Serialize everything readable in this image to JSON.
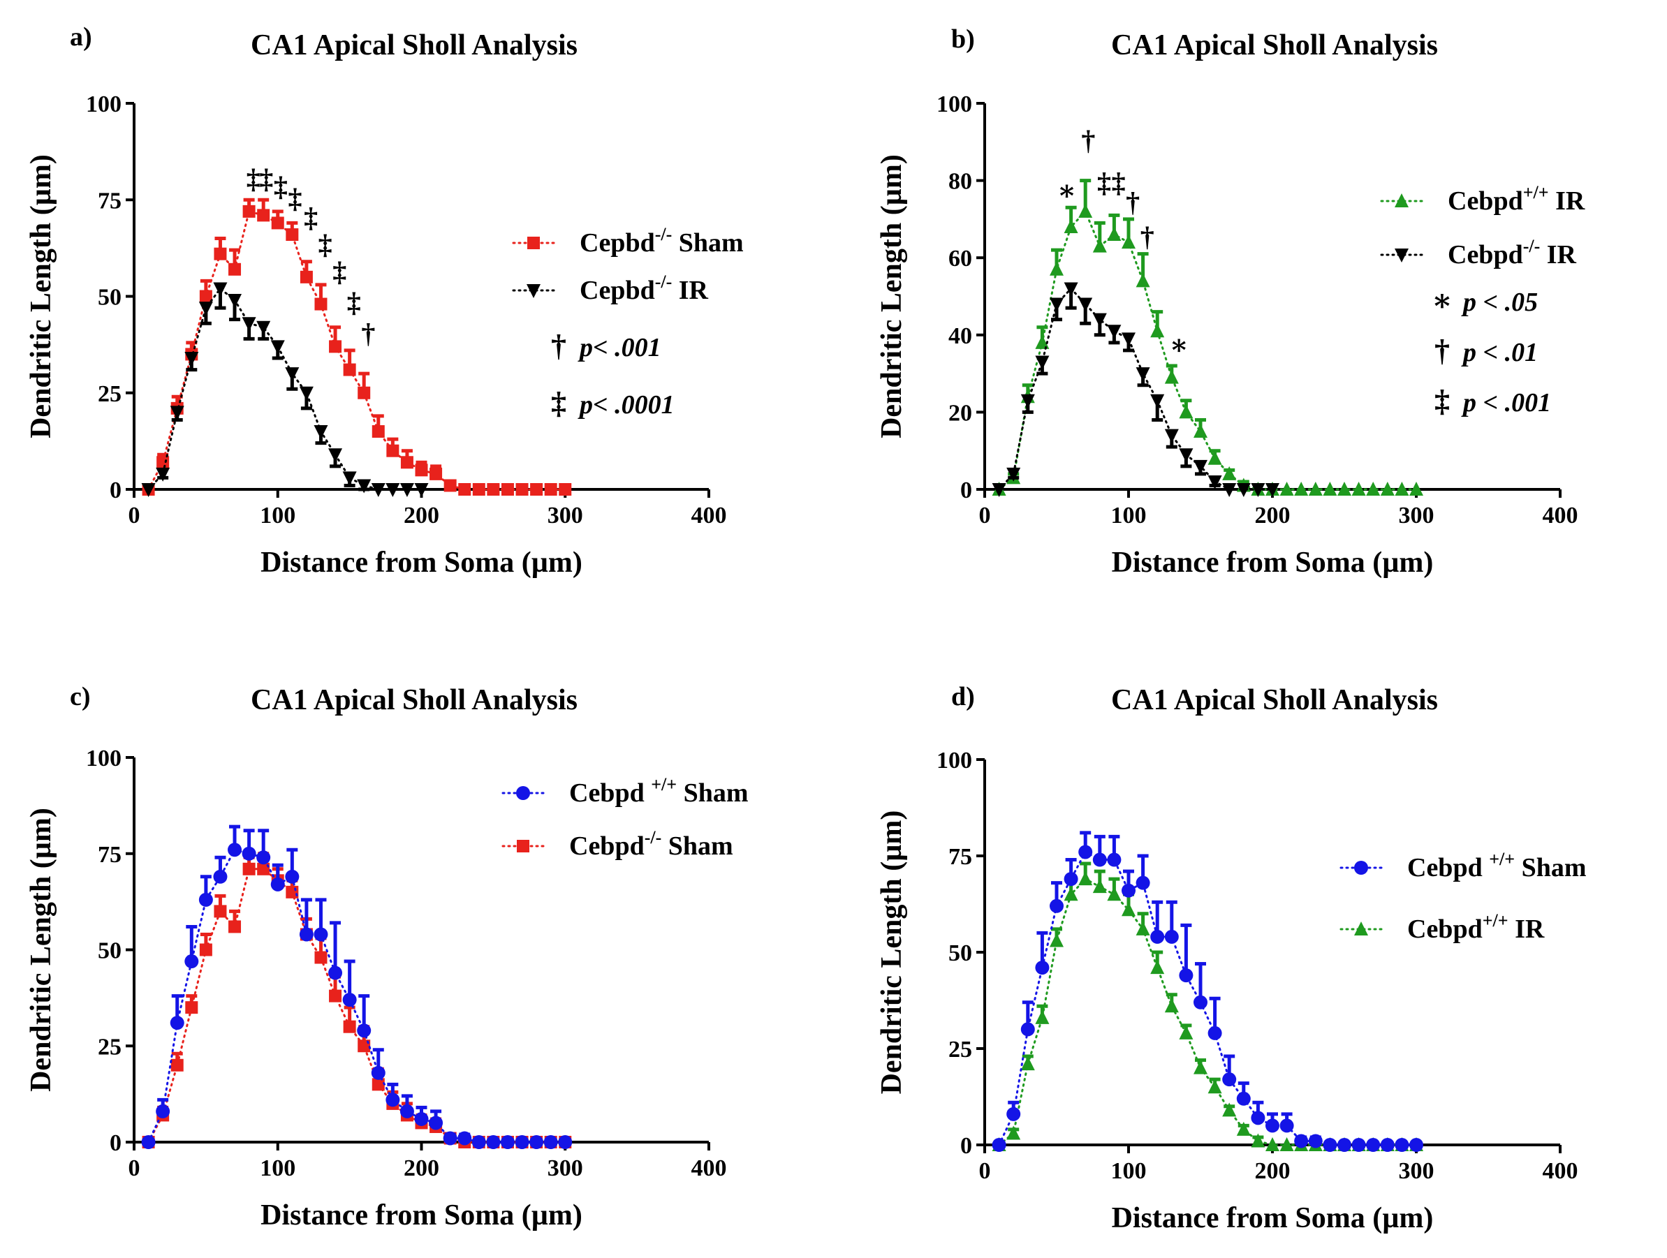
{
  "figure": {
    "colors": {
      "red": "#e8221c",
      "black": "#000000",
      "green": "#1f9a1f",
      "blue": "#1414e6"
    }
  },
  "chart_data": [
    {
      "panel": "a)",
      "type": "line",
      "title": "CA1 Apical Sholl Analysis",
      "xlabel": "Distance from Soma (µm)",
      "ylabel": "Dendritic Length (µm)",
      "xlim": [
        0,
        400
      ],
      "ylim": [
        0,
        100
      ],
      "xticks": [
        0,
        100,
        200,
        300,
        400
      ],
      "yticks": [
        0,
        25,
        50,
        75,
        100
      ],
      "legend": [
        {
          "marker": "square",
          "color": "#e8221c",
          "label": "Cepbd",
          "sup": "-/-",
          "suffix": " Sham"
        },
        {
          "marker": "tri-down",
          "color": "#000000",
          "label": "Cepbd",
          "sup": "-/-",
          "suffix": " IR"
        }
      ],
      "sig_legend": [
        {
          "symbol": "†",
          "text": "p< .001"
        },
        {
          "symbol": "‡",
          "text": "p< .0001"
        }
      ],
      "series": [
        {
          "name": "Cepbd-/- Sham",
          "color": "#e8221c",
          "marker": "square",
          "x": [
            10,
            20,
            30,
            40,
            50,
            60,
            70,
            80,
            90,
            100,
            110,
            120,
            130,
            140,
            150,
            160,
            170,
            180,
            190,
            200,
            210,
            220,
            230,
            240,
            250,
            260,
            270,
            280,
            290,
            300
          ],
          "y": [
            0,
            7,
            21,
            35,
            50,
            61,
            57,
            72,
            71,
            69,
            66,
            55,
            48,
            37,
            31,
            25,
            15,
            10,
            7,
            5,
            4,
            1,
            0,
            0,
            0,
            0,
            0,
            0,
            0,
            0
          ],
          "err": [
            0,
            2,
            3,
            3,
            4,
            4,
            5,
            3,
            4,
            3,
            3,
            4,
            5,
            5,
            5,
            5,
            4,
            3,
            3,
            2,
            2,
            1,
            0,
            0,
            0,
            0,
            0,
            0,
            0,
            0
          ]
        },
        {
          "name": "Cepbd-/- IR",
          "color": "#000000",
          "marker": "tri-down",
          "x": [
            10,
            20,
            30,
            40,
            50,
            60,
            70,
            80,
            90,
            100,
            110,
            120,
            130,
            140,
            150,
            160,
            170,
            180,
            190,
            200
          ],
          "y": [
            0,
            4,
            20,
            34,
            47,
            52,
            49,
            43,
            42,
            37,
            30,
            25,
            15,
            9,
            3,
            1,
            0,
            0,
            0,
            0
          ],
          "err": [
            0,
            1,
            2,
            3,
            4,
            5,
            5,
            4,
            3,
            3,
            4,
            4,
            3,
            3,
            2,
            1,
            0,
            0,
            0,
            0
          ]
        }
      ],
      "annotations": [
        {
          "x": 83,
          "y": 78,
          "text": "‡"
        },
        {
          "x": 92,
          "y": 78,
          "text": "‡"
        },
        {
          "x": 102,
          "y": 76,
          "text": "‡"
        },
        {
          "x": 112,
          "y": 73,
          "text": "‡"
        },
        {
          "x": 123,
          "y": 68,
          "text": "‡"
        },
        {
          "x": 133,
          "y": 61,
          "text": "‡"
        },
        {
          "x": 143,
          "y": 54,
          "text": "‡"
        },
        {
          "x": 153,
          "y": 46,
          "text": "‡"
        },
        {
          "x": 163,
          "y": 38,
          "text": "†"
        }
      ]
    },
    {
      "panel": "b)",
      "type": "line",
      "title": "CA1 Apical Sholl Analysis",
      "xlabel": "Distance from Soma (µm)",
      "ylabel": "Dendritic Length (µm)",
      "xlim": [
        0,
        400
      ],
      "ylim": [
        0,
        100
      ],
      "xticks": [
        0,
        100,
        200,
        300,
        400
      ],
      "yticks": [
        0,
        20,
        40,
        60,
        80,
        100
      ],
      "legend": [
        {
          "marker": "tri-up",
          "color": "#1f9a1f",
          "label": "Cebpd",
          "sup": "+/+",
          "suffix": " IR"
        },
        {
          "marker": "tri-down",
          "color": "#000000",
          "label": "Cebpd",
          "sup": "-/-",
          "suffix": " IR"
        }
      ],
      "sig_legend": [
        {
          "symbol": "∗",
          "text": "p < .05"
        },
        {
          "symbol": "†",
          "text": "p < .01"
        },
        {
          "symbol": "‡",
          "text": "p < .001"
        }
      ],
      "series": [
        {
          "name": "Cebpd+/+ IR",
          "color": "#1f9a1f",
          "marker": "tri-up",
          "x": [
            10,
            20,
            30,
            40,
            50,
            60,
            70,
            80,
            90,
            100,
            110,
            120,
            130,
            140,
            150,
            160,
            170,
            180,
            190,
            200,
            210,
            220,
            230,
            240,
            250,
            260,
            270,
            280,
            290,
            300
          ],
          "y": [
            0,
            3,
            24,
            38,
            57,
            68,
            72,
            63,
            66,
            64,
            54,
            41,
            29,
            20,
            15,
            8,
            4,
            1,
            0,
            0,
            0,
            0,
            0,
            0,
            0,
            0,
            0,
            0,
            0,
            0
          ],
          "err": [
            0,
            1,
            3,
            4,
            5,
            5,
            8,
            6,
            5,
            6,
            7,
            5,
            3,
            3,
            3,
            2,
            1,
            1,
            0,
            0,
            0,
            0,
            0,
            0,
            0,
            0,
            0,
            0,
            0,
            0
          ]
        },
        {
          "name": "Cebpd-/- IR",
          "color": "#000000",
          "marker": "tri-down",
          "x": [
            10,
            20,
            30,
            40,
            50,
            60,
            70,
            80,
            90,
            100,
            110,
            120,
            130,
            140,
            150,
            160,
            170,
            180,
            190,
            200
          ],
          "y": [
            0,
            4,
            23,
            33,
            48,
            52,
            48,
            44,
            41,
            39,
            30,
            23,
            14,
            9,
            6,
            2,
            0,
            0,
            0,
            0
          ],
          "err": [
            0,
            1,
            3,
            3,
            4,
            5,
            5,
            4,
            3,
            3,
            3,
            5,
            3,
            3,
            2,
            1,
            0,
            0,
            0,
            0
          ]
        }
      ],
      "annotations": [
        {
          "x": 57,
          "y": 75,
          "text": "∗"
        },
        {
          "x": 72,
          "y": 88,
          "text": "†"
        },
        {
          "x": 83,
          "y": 77,
          "text": "‡"
        },
        {
          "x": 93,
          "y": 77,
          "text": "‡"
        },
        {
          "x": 103,
          "y": 72,
          "text": "†"
        },
        {
          "x": 113,
          "y": 63,
          "text": "†"
        },
        {
          "x": 135,
          "y": 35,
          "text": "∗"
        }
      ]
    },
    {
      "panel": "c)",
      "type": "line",
      "title": "CA1 Apical Sholl Analysis",
      "xlabel": "Distance from Soma (µm)",
      "ylabel": "Dendritic Length (µm)",
      "xlim": [
        0,
        400
      ],
      "ylim": [
        0,
        100
      ],
      "xticks": [
        0,
        100,
        200,
        300,
        400
      ],
      "yticks": [
        0,
        25,
        50,
        75,
        100
      ],
      "legend": [
        {
          "marker": "circle",
          "color": "#1414e6",
          "label": "Cebpd ",
          "sup": "+/+",
          "suffix": " Sham"
        },
        {
          "marker": "square",
          "color": "#e8221c",
          "label": "Cebpd",
          "sup": "-/-",
          "suffix": " Sham"
        }
      ],
      "sig_legend": [],
      "series": [
        {
          "name": "Cebpd-/- Sham",
          "color": "#e8221c",
          "marker": "square",
          "x": [
            10,
            20,
            30,
            40,
            50,
            60,
            70,
            80,
            90,
            100,
            110,
            120,
            130,
            140,
            150,
            160,
            170,
            180,
            190,
            200,
            210,
            220,
            230,
            240,
            250,
            260,
            270,
            280,
            290,
            300
          ],
          "y": [
            0,
            7,
            20,
            35,
            50,
            60,
            56,
            71,
            71,
            68,
            65,
            54,
            48,
            38,
            30,
            25,
            15,
            10,
            7,
            5,
            4,
            1,
            0,
            0,
            0,
            0,
            0,
            0,
            0,
            0
          ],
          "err": [
            0,
            2,
            3,
            3,
            4,
            4,
            4,
            3,
            4,
            3,
            3,
            4,
            5,
            5,
            5,
            5,
            4,
            3,
            3,
            2,
            2,
            1,
            0,
            0,
            0,
            0,
            0,
            0,
            0,
            0
          ]
        },
        {
          "name": "Cebpd+/+ Sham",
          "color": "#1414e6",
          "marker": "circle",
          "x": [
            10,
            20,
            30,
            40,
            50,
            60,
            70,
            80,
            90,
            100,
            110,
            120,
            130,
            140,
            150,
            160,
            170,
            180,
            190,
            200,
            210,
            220,
            230,
            240,
            250,
            260,
            270,
            280,
            290,
            300
          ],
          "y": [
            0,
            8,
            31,
            47,
            63,
            69,
            76,
            75,
            74,
            67,
            69,
            54,
            54,
            44,
            37,
            29,
            18,
            11,
            8,
            6,
            5,
            1,
            1,
            0,
            0,
            0,
            0,
            0,
            0,
            0
          ],
          "err": [
            0,
            3,
            7,
            9,
            6,
            5,
            6,
            6,
            7,
            5,
            7,
            9,
            9,
            13,
            10,
            9,
            6,
            4,
            4,
            3,
            3,
            1,
            1,
            0,
            0,
            0,
            0,
            0,
            0,
            0
          ]
        }
      ],
      "annotations": []
    },
    {
      "panel": "d)",
      "type": "line",
      "title": "CA1 Apical Sholl Analysis",
      "xlabel": "Distance from Soma (µm)",
      "ylabel": "Dendritic Length (µm)",
      "xlim": [
        0,
        400
      ],
      "ylim": [
        0,
        100
      ],
      "xticks": [
        0,
        100,
        200,
        300,
        400
      ],
      "yticks": [
        0,
        25,
        50,
        75,
        100
      ],
      "legend": [
        {
          "marker": "circle",
          "color": "#1414e6",
          "label": "Cebpd ",
          "sup": "+/+",
          "suffix": " Sham"
        },
        {
          "marker": "tri-up",
          "color": "#1f9a1f",
          "label": "Cebpd",
          "sup": "+/+",
          "suffix": " IR"
        }
      ],
      "sig_legend": [],
      "series": [
        {
          "name": "Cebpd+/+ IR",
          "color": "#1f9a1f",
          "marker": "tri-up",
          "x": [
            10,
            20,
            30,
            40,
            50,
            60,
            70,
            80,
            90,
            100,
            110,
            120,
            130,
            140,
            150,
            160,
            170,
            180,
            190,
            200,
            210,
            220,
            230,
            240,
            250,
            260,
            270,
            280,
            290,
            300
          ],
          "y": [
            0,
            3,
            21,
            33,
            53,
            65,
            69,
            67,
            65,
            61,
            56,
            46,
            36,
            29,
            20,
            15,
            9,
            4,
            1,
            0,
            0,
            0,
            0,
            0,
            0,
            0,
            0,
            0,
            0,
            0
          ],
          "err": [
            0,
            1,
            2,
            3,
            3,
            4,
            4,
            4,
            4,
            4,
            4,
            4,
            3,
            2,
            2,
            2,
            1,
            1,
            1,
            0,
            0,
            0,
            0,
            0,
            0,
            0,
            0,
            0,
            0,
            0
          ]
        },
        {
          "name": "Cebpd+/+ Sham",
          "color": "#1414e6",
          "marker": "circle",
          "x": [
            10,
            20,
            30,
            40,
            50,
            60,
            70,
            80,
            90,
            100,
            110,
            120,
            130,
            140,
            150,
            160,
            170,
            180,
            190,
            200,
            210,
            220,
            230,
            240,
            250,
            260,
            270,
            280,
            290,
            300
          ],
          "y": [
            0,
            8,
            30,
            46,
            62,
            69,
            76,
            74,
            74,
            66,
            68,
            54,
            54,
            44,
            37,
            29,
            17,
            12,
            7,
            5,
            5,
            1,
            1,
            0,
            0,
            0,
            0,
            0,
            0,
            0
          ],
          "err": [
            0,
            3,
            7,
            9,
            6,
            5,
            5,
            6,
            6,
            5,
            7,
            9,
            9,
            13,
            10,
            9,
            6,
            4,
            4,
            3,
            3,
            1,
            1,
            0,
            0,
            0,
            0,
            0,
            0,
            0
          ]
        }
      ],
      "annotations": []
    }
  ]
}
